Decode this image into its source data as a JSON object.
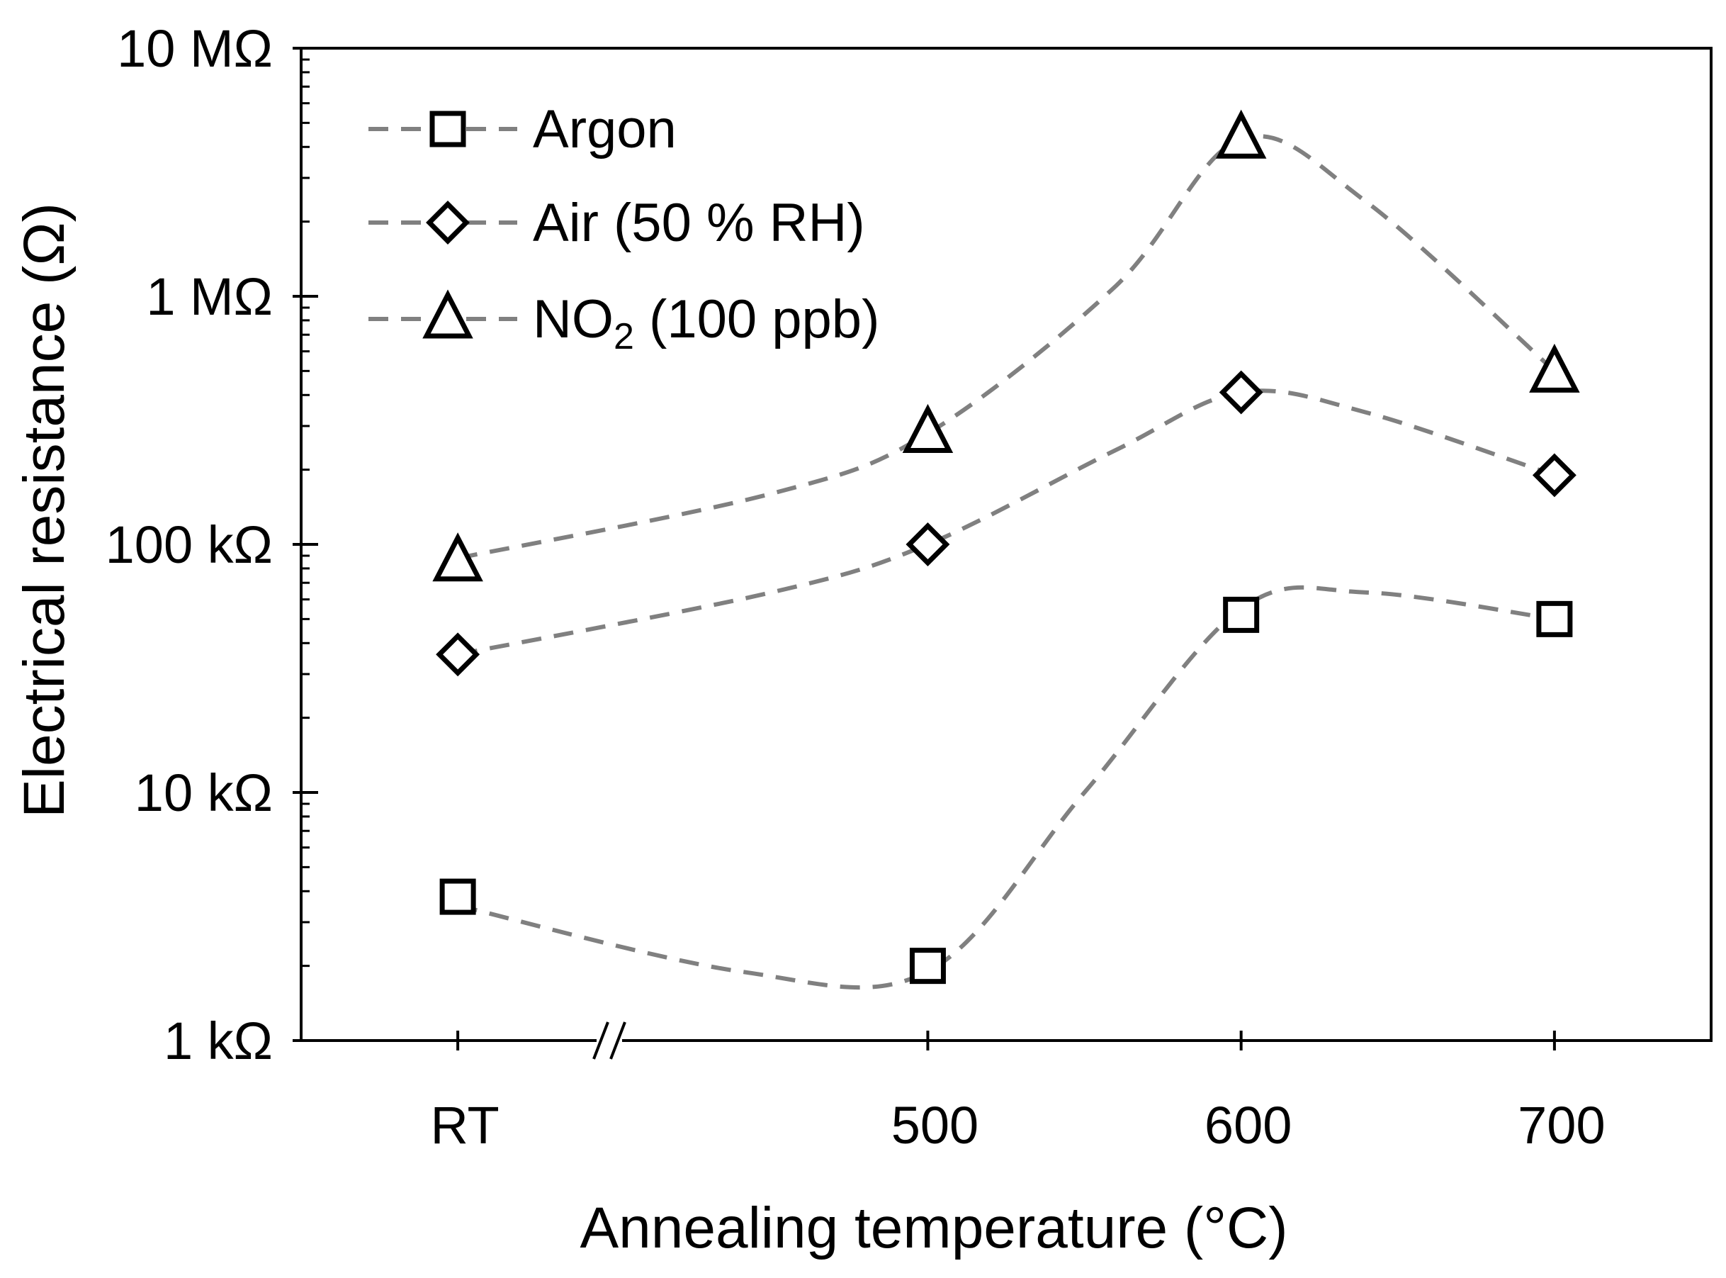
{
  "chart_data": {
    "type": "scatter",
    "title": "",
    "xlabel": "Annealing temperature (°C)",
    "ylabel": "Electrical resistance (Ω)",
    "yscale": "log",
    "ylim": [
      1000,
      10000000
    ],
    "xlim": [
      0,
      4.5
    ],
    "axis_break": "between RT and 500",
    "grid": false,
    "legend_position": "top-left",
    "categories": [
      "RT",
      "500",
      "600",
      "700"
    ],
    "x_positions": [
      0.5,
      2.0,
      3.0,
      4.0
    ],
    "y_ticks": [
      {
        "value": 1000,
        "label": "1 kΩ"
      },
      {
        "value": 10000,
        "label": "10 kΩ"
      },
      {
        "value": 100000,
        "label": "100 kΩ"
      },
      {
        "value": 1000000,
        "label": "1 MΩ"
      },
      {
        "value": 10000000,
        "label": "10 MΩ"
      }
    ],
    "series": [
      {
        "name": "Argon",
        "marker": "square",
        "values": [
          3800,
          2000,
          52000,
          50000
        ]
      },
      {
        "name": "Air (50 % RH)",
        "marker": "diamond",
        "values": [
          36000,
          100000,
          410000,
          190000
        ]
      },
      {
        "name": "NO2 (100 ppb)",
        "name_main": "NO",
        "name_sub": "2",
        "name_rest": " (100 ppb)",
        "marker": "triangle",
        "values": [
          85000,
          280000,
          4300000,
          490000
        ]
      }
    ],
    "trend_curves": [
      {
        "series": "Argon",
        "points": [
          [
            0.5,
            3500
          ],
          [
            1.4,
            1900
          ],
          [
            2.0,
            1900
          ],
          [
            2.5,
            10000
          ],
          [
            3.0,
            55000
          ],
          [
            3.4,
            64000
          ],
          [
            4.0,
            50000
          ]
        ]
      },
      {
        "series": "Air (50 % RH)",
        "points": [
          [
            0.5,
            36000
          ],
          [
            1.5,
            64000
          ],
          [
            2.0,
            100000
          ],
          [
            2.6,
            240000
          ],
          [
            3.0,
            410000
          ],
          [
            3.4,
            340000
          ],
          [
            4.0,
            190000
          ]
        ]
      },
      {
        "series": "NO2 (100 ppb)",
        "points": [
          [
            0.5,
            88000
          ],
          [
            1.5,
            160000
          ],
          [
            2.0,
            280000
          ],
          [
            2.6,
            1100000
          ],
          [
            3.0,
            4300000
          ],
          [
            3.4,
            2400000
          ],
          [
            4.0,
            500000
          ]
        ]
      }
    ],
    "colors": {
      "axis": "#000000",
      "marker": "#000000",
      "curve": "#808080"
    }
  }
}
